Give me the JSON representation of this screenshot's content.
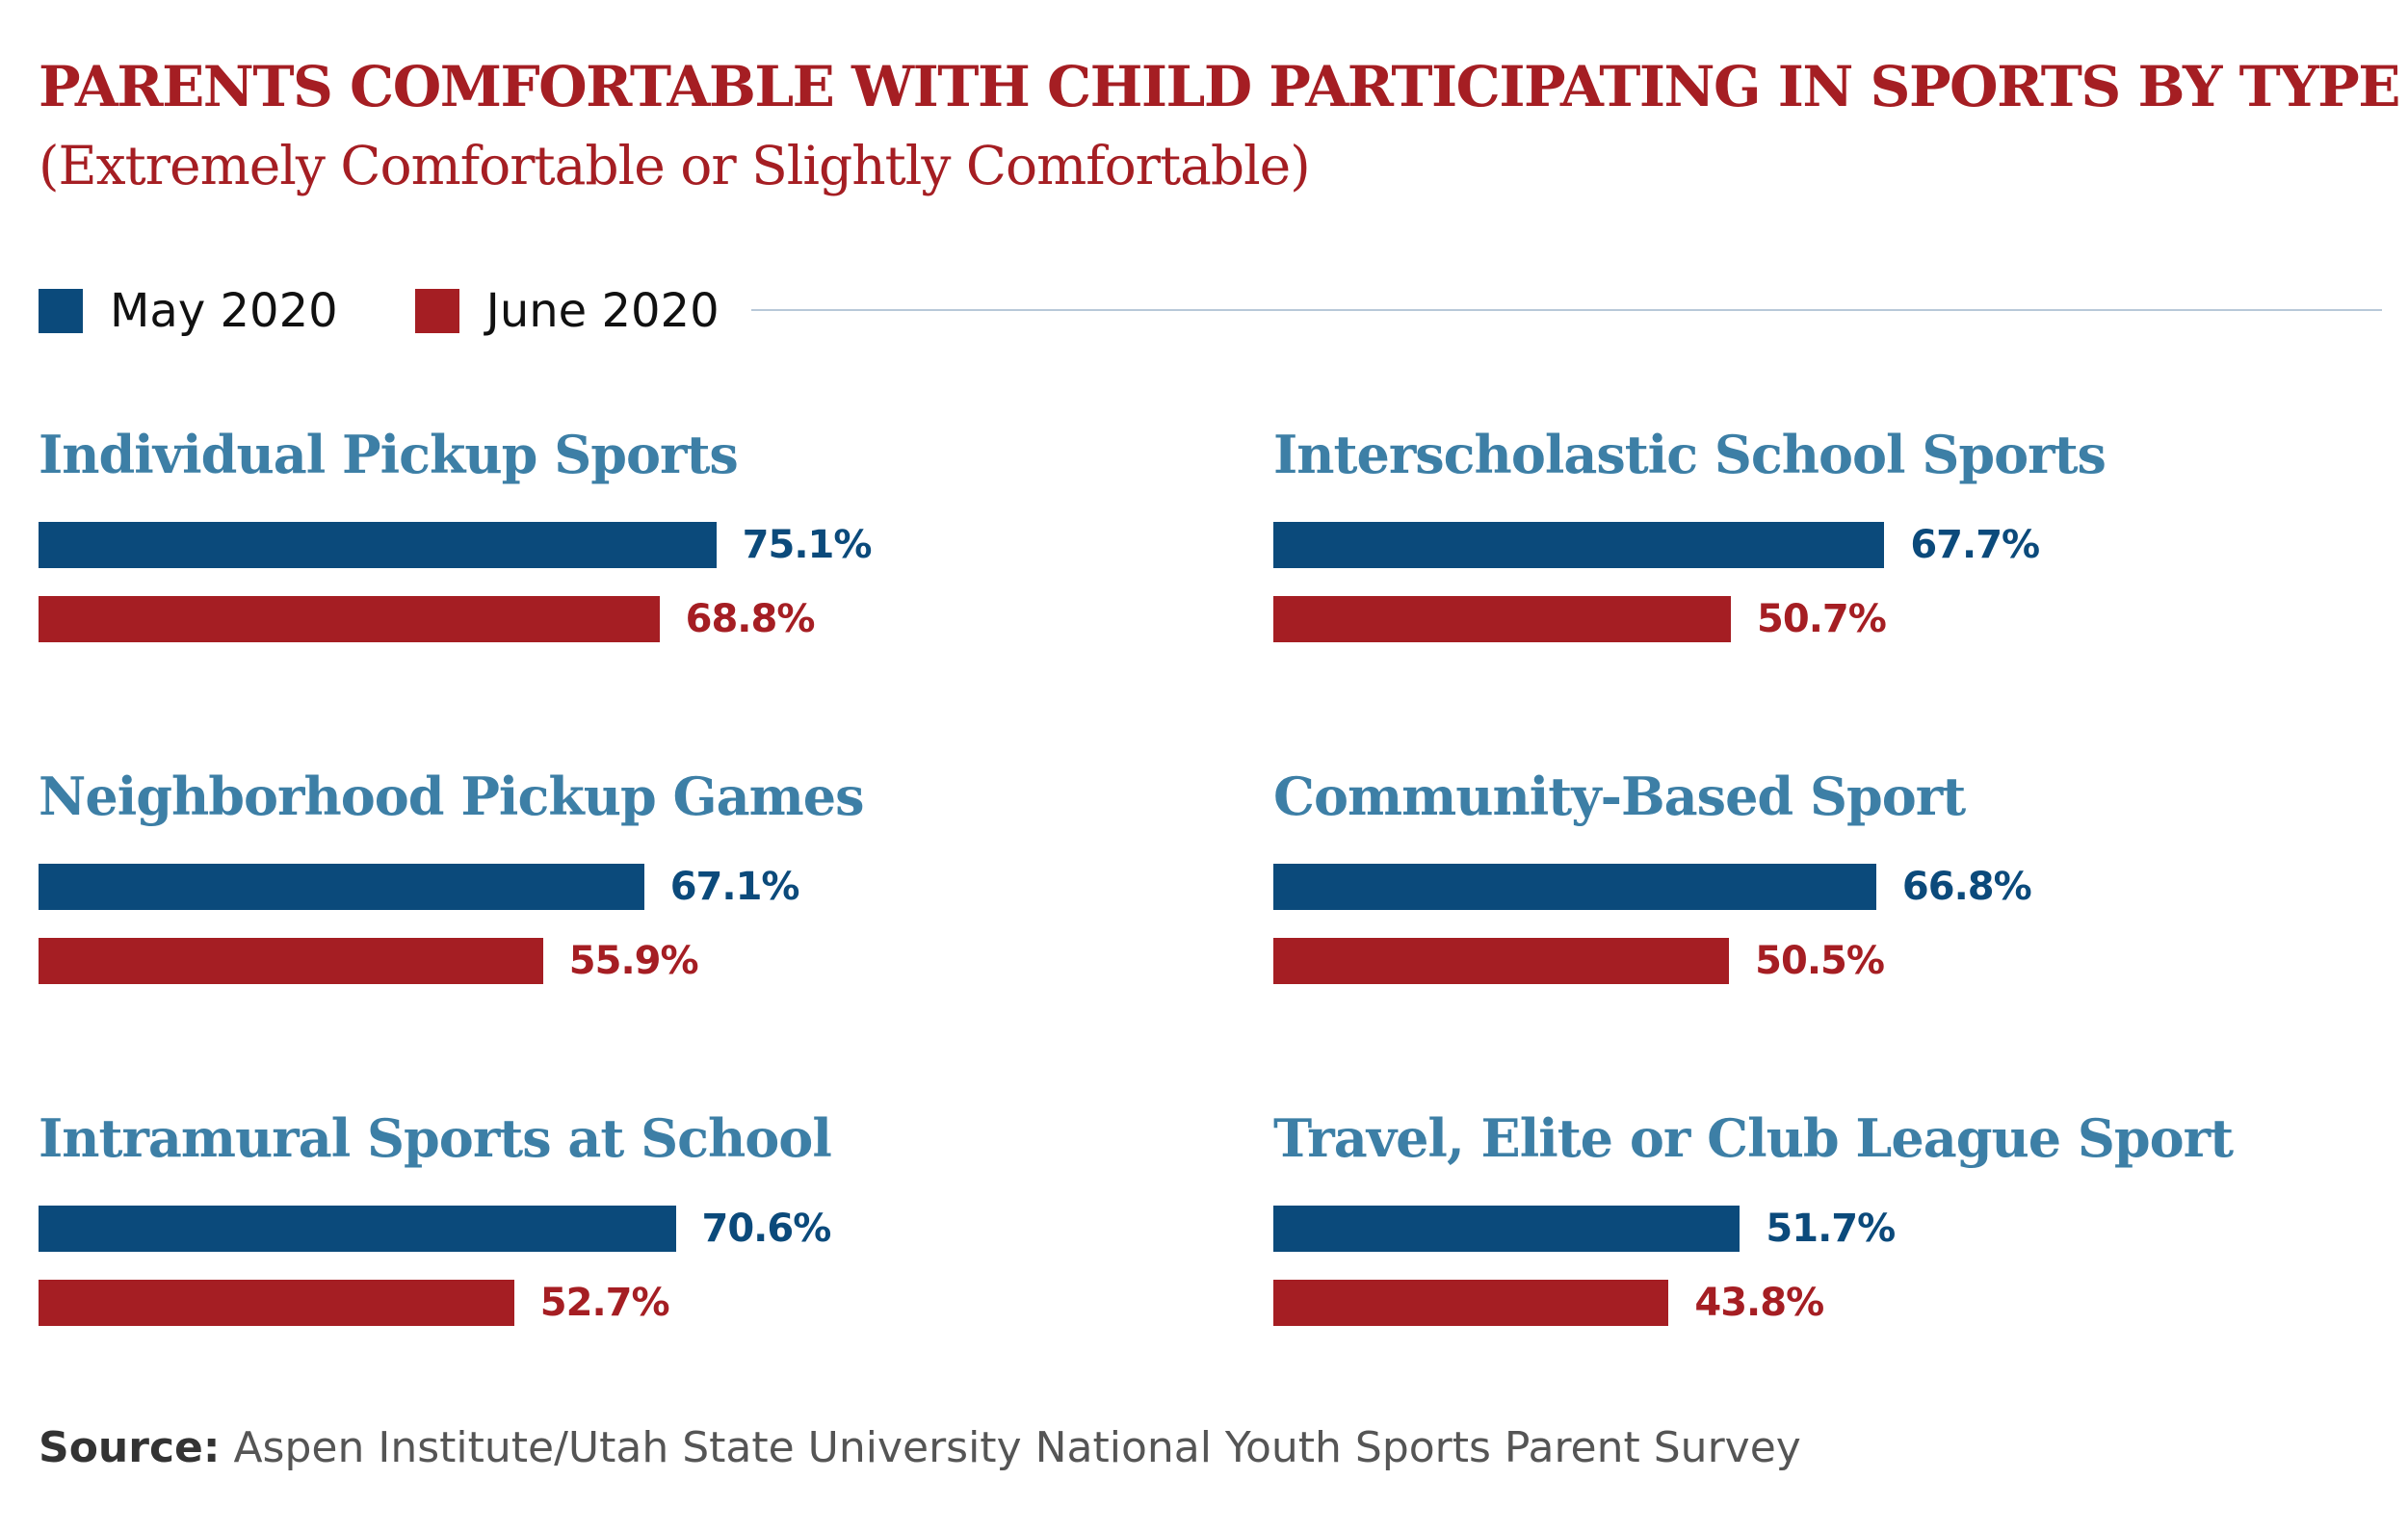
{
  "chart_data": {
    "type": "bar",
    "title": "PARENTS COMFORTABLE WITH CHILD PARTICIPATING IN SPORTS BY TYPE",
    "subtitle": "(Extremely Comfortable or Slightly Comfortable)",
    "categories": [
      "Individual Pickup Sports",
      "Interscholastic School Sports",
      "Neighborhood Pickup Games",
      "Community-Based Sport",
      "Intramural Sports at School",
      "Travel, Elite or Club League Sport"
    ],
    "series": [
      {
        "name": "May 2020",
        "color": "#0b4a7b",
        "values": [
          75.1,
          67.7,
          67.1,
          66.8,
          70.6,
          51.7
        ]
      },
      {
        "name": "June 2020",
        "color": "#a51e23",
        "values": [
          68.8,
          50.7,
          55.9,
          50.5,
          52.7,
          43.8
        ]
      }
    ],
    "value_labels": {
      "may": [
        "75.1%",
        "67.7%",
        "67.1%",
        "66.8%",
        "70.6%",
        "51.7%"
      ],
      "june": [
        "68.8%",
        "50.7%",
        "55.9%",
        "50.5%",
        "52.7%",
        "43.8%"
      ]
    },
    "legend_position": "top-left",
    "grid": false
  },
  "colors": {
    "title": "#a51e23",
    "category_title": "#3d7fa6",
    "may": "#0b4a7b",
    "june": "#a51e23"
  },
  "source": {
    "label": "Source:",
    "text": " Aspen Institute/Utah State University National Youth Sports Parent Survey"
  }
}
